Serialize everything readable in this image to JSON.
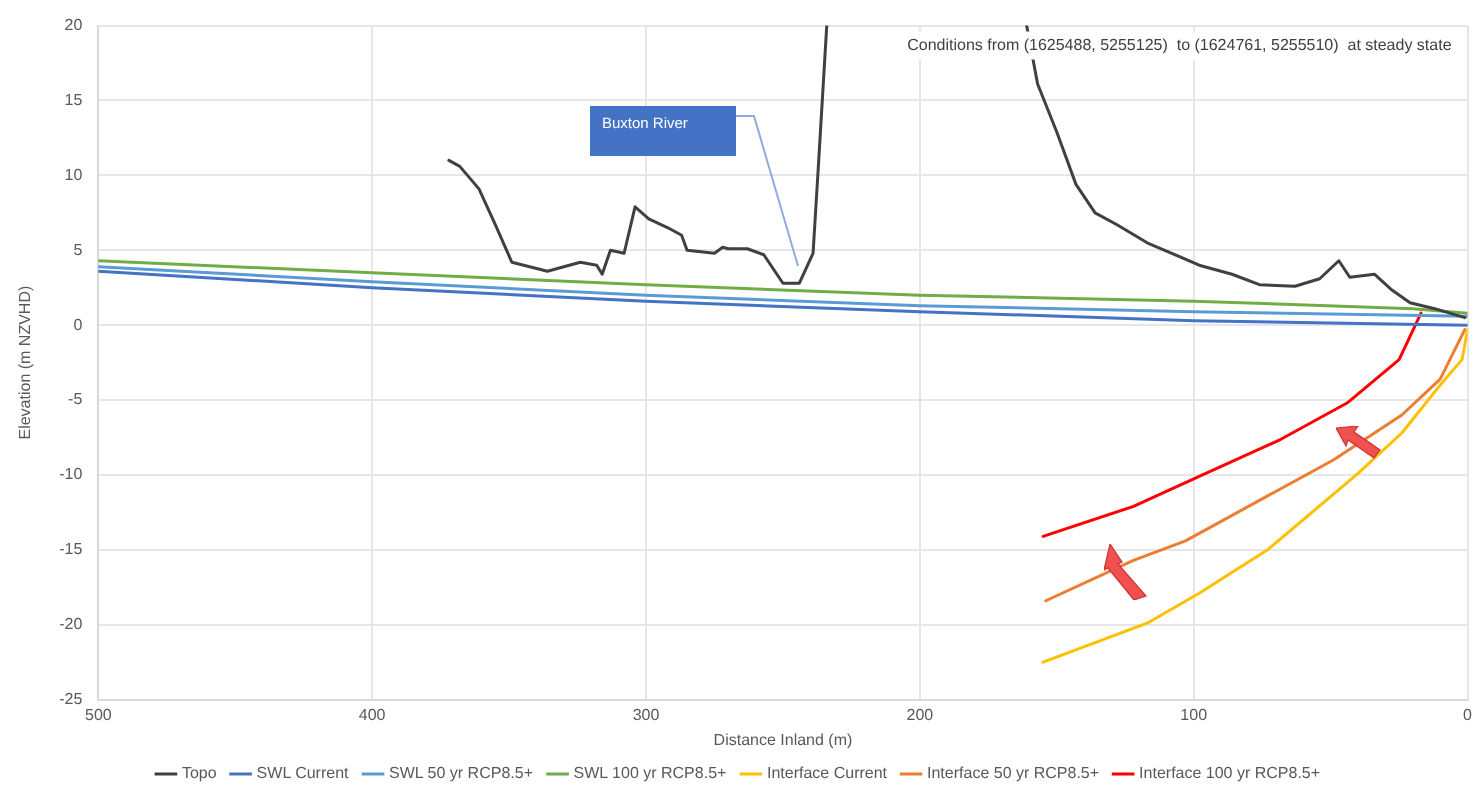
{
  "chart_data": {
    "type": "line",
    "xlabel": "Distance Inland (m)",
    "ylabel": "Elevation (m NZVHD)",
    "xlim": [
      500,
      0
    ],
    "xticks": [
      500,
      400,
      300,
      200,
      100,
      0
    ],
    "ylim": [
      -25,
      20
    ],
    "yticks": [
      -25,
      -20,
      -15,
      -10,
      -5,
      0,
      5,
      10,
      15,
      20
    ],
    "grid": true,
    "legend": "bottom",
    "marker": "none",
    "line_style": "solid",
    "annotations": [
      "Conditions from (1625488, 5255125)  to (1624761, 5255510)  at steady state",
      "Buxton River"
    ],
    "series": [
      {
        "name": "Topo",
        "color": "#404040",
        "x": [
          372,
          368,
          361,
          355,
          349,
          336,
          324,
          318,
          316,
          313,
          308,
          304,
          299,
          292,
          287,
          285,
          275,
          272,
          270,
          263,
          257,
          250,
          244,
          239,
          237,
          234,
          200,
          161,
          157,
          150,
          143,
          136,
          128,
          117,
          108,
          98,
          86,
          76,
          63,
          54,
          47,
          43,
          34,
          28,
          21,
          12,
          1
        ],
        "values": [
          11,
          10.6,
          9.1,
          6.7,
          4.2,
          3.6,
          4.2,
          4,
          3.4,
          5,
          4.8,
          7.9,
          7.1,
          6.5,
          6,
          5,
          4.8,
          5.2,
          5.1,
          5.1,
          4.7,
          2.8,
          2.8,
          4.8,
          10.8,
          20,
          null,
          20,
          16.1,
          12.9,
          9.4,
          7.5,
          6.7,
          5.5,
          4.8,
          4,
          3.4,
          2.7,
          2.6,
          3.1,
          4.3,
          3.2,
          3.4,
          2.4,
          1.5,
          1.1,
          0.5
        ]
      },
      {
        "name": "SWL Current",
        "color": "#4472c4",
        "x": [
          500,
          400,
          300,
          200,
          100,
          0
        ],
        "values": [
          3.6,
          2.5,
          1.6,
          0.9,
          0.3,
          0
        ]
      },
      {
        "name": "SWL 50 yr RCP8.5+",
        "color": "#5b9bd5",
        "x": [
          500,
          400,
          300,
          200,
          100,
          0
        ],
        "values": [
          3.9,
          2.9,
          2,
          1.3,
          0.9,
          0.6
        ]
      },
      {
        "name": "SWL 100 yr RCP8.5+",
        "color": "#70ad47",
        "x": [
          500,
          400,
          300,
          200,
          100,
          20,
          0
        ],
        "values": [
          4.3,
          3.5,
          2.7,
          2,
          1.6,
          1.1,
          0.8
        ]
      },
      {
        "name": "Interface Current",
        "color": "#ffc000",
        "x": [
          155,
          117,
          98,
          73,
          40,
          24,
          10,
          2,
          0
        ],
        "values": [
          -22.5,
          -19.9,
          -17.9,
          -15,
          -9.9,
          -7.2,
          -4,
          -2.3,
          -0.3
        ]
      },
      {
        "name": "Interface 50 yr RCP8.5+",
        "color": "#ed7d31",
        "x": [
          154,
          122,
          103,
          73,
          49,
          24,
          10,
          1
        ],
        "values": [
          -18.4,
          -15.7,
          -14.4,
          -11.4,
          -9,
          -6,
          -3.6,
          -0.3
        ]
      },
      {
        "name": "Interface 100 yr RCP8.5+",
        "color": "#ff0000",
        "x": [
          155,
          122,
          98,
          69,
          44,
          25,
          17
        ],
        "values": [
          -14.1,
          -12.1,
          -10.1,
          -7.7,
          -5.2,
          -2.3,
          0.8
        ]
      }
    ]
  }
}
